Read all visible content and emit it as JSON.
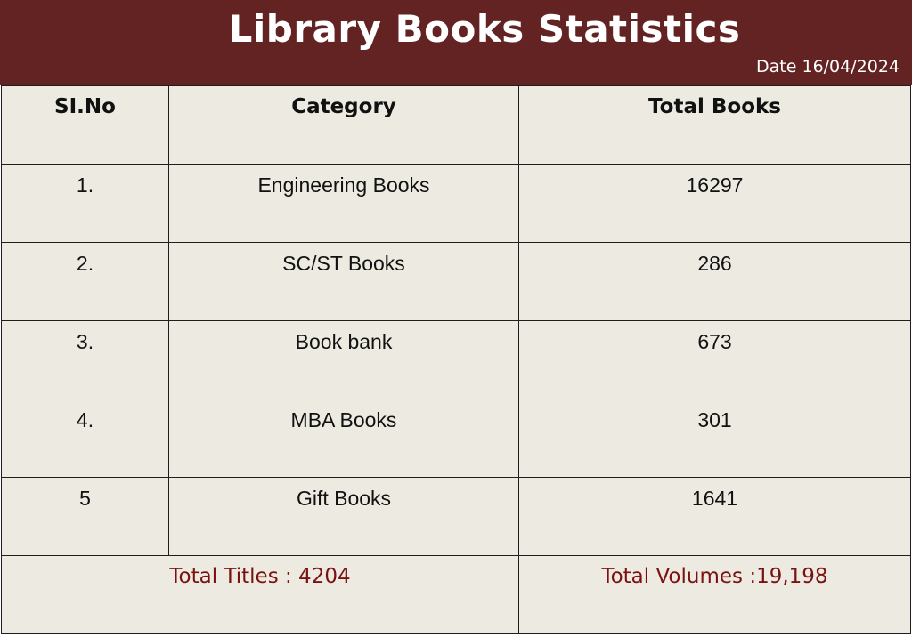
{
  "header": {
    "title": "Library Books Statistics",
    "date": "Date 16/04/2024",
    "background_color": "#632323"
  },
  "table": {
    "columns": [
      "SI.No",
      "Category",
      "Total Books"
    ],
    "rows": [
      {
        "sno": "1.",
        "category": "Engineering Books",
        "total": "16297"
      },
      {
        "sno": "2.",
        "category": "SC/ST Books",
        "total": "286"
      },
      {
        "sno": "3.",
        "category": "Book bank",
        "total": "673"
      },
      {
        "sno": "4.",
        "category": "MBA Books",
        "total": "301"
      },
      {
        "sno": "5",
        "category": "Gift Books",
        "total": "1641"
      }
    ],
    "footer": {
      "total_titles": "Total Titles : 4204",
      "total_volumes": "Total Volumes :19,198"
    },
    "background_color": "#edeae1",
    "total_text_color": "#7a1212"
  }
}
